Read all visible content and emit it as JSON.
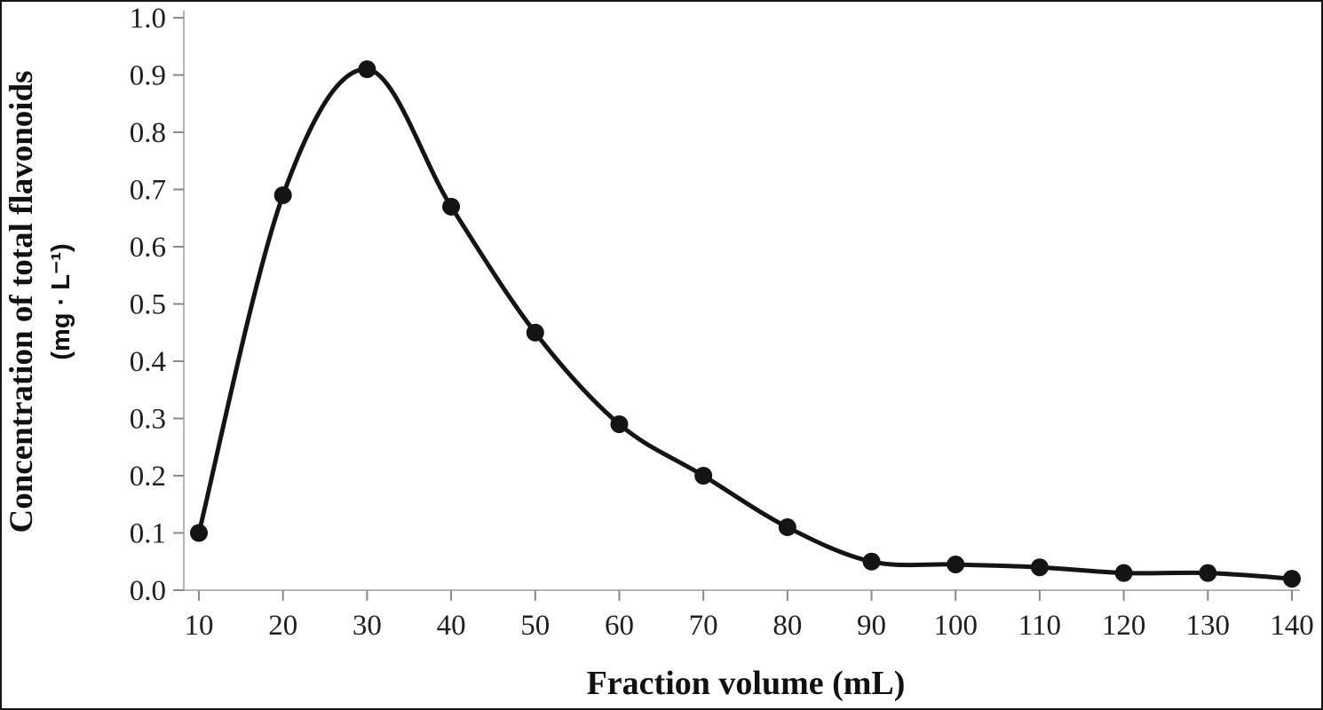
{
  "chart_data": {
    "type": "line",
    "title": "",
    "xlabel": "Fraction volume (mL)",
    "ylabel_line1": "Concentration of total flavonoids",
    "ylabel_line2": "(mg · L⁻¹)",
    "x": [
      10,
      20,
      30,
      40,
      50,
      60,
      70,
      80,
      90,
      100,
      110,
      120,
      130,
      140
    ],
    "series": [
      {
        "name": "Concentration of total flavonoids",
        "values": [
          0.1,
          0.69,
          0.91,
          0.67,
          0.45,
          0.29,
          0.2,
          0.11,
          0.05,
          0.045,
          0.04,
          0.03,
          0.03,
          0.02
        ]
      }
    ],
    "xlim": [
      10,
      140
    ],
    "ylim": [
      0.0,
      1.0
    ],
    "x_ticks": [
      10,
      20,
      30,
      40,
      50,
      60,
      70,
      80,
      90,
      100,
      110,
      120,
      130,
      140
    ],
    "x_tick_labels": [
      "10",
      "20",
      "30",
      "40",
      "50",
      "60",
      "70",
      "80",
      "90",
      "100",
      "110",
      "120",
      "130",
      "140"
    ],
    "y_ticks": [
      0.0,
      0.1,
      0.2,
      0.3,
      0.4,
      0.5,
      0.6,
      0.7,
      0.8,
      0.9,
      1.0
    ],
    "y_tick_labels": [
      "0.0",
      "0.1",
      "0.2",
      "0.3",
      "0.4",
      "0.5",
      "0.6",
      "0.7",
      "0.8",
      "0.9",
      "1.0"
    ],
    "grid": false,
    "legend": "none",
    "line_color": "#141414",
    "marker": "filled-circle",
    "marker_color": "#141414",
    "axis_color": "#b5b5b5",
    "tick_color": "#8a8a8a"
  }
}
